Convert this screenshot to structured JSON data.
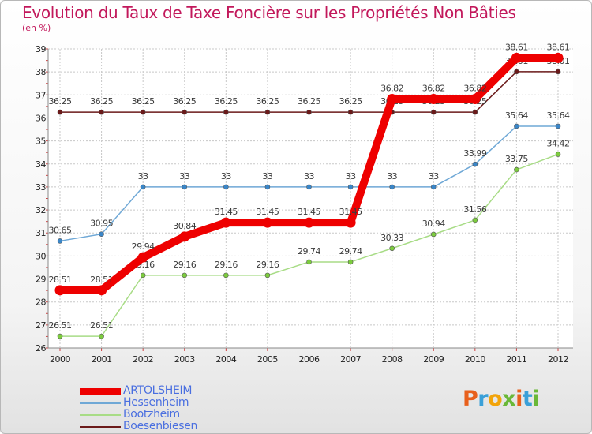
{
  "chart_data": {
    "type": "line",
    "title": "Evolution du Taux de Taxe Foncière sur les Propriétés Non Bâties",
    "ylabel": "(en %)",
    "xlabel": "",
    "categories": [
      "2000",
      "2001",
      "2002",
      "2003",
      "2004",
      "2005",
      "2006",
      "2007",
      "2008",
      "2009",
      "2010",
      "2011",
      "2012"
    ],
    "ylim": [
      26,
      39
    ],
    "yticks": [
      26,
      27,
      28,
      29,
      30,
      31,
      32,
      33,
      34,
      35,
      36,
      37,
      38,
      39
    ],
    "grid": true,
    "legend_position": "bottom-left",
    "series": [
      {
        "name": "Boesenbiesen",
        "color": "#6b1a1a",
        "marker": "#6b1a1a",
        "values": [
          36.25,
          36.25,
          36.25,
          36.25,
          36.25,
          36.25,
          36.25,
          36.25,
          36.25,
          36.25,
          36.25,
          38.01,
          38.01
        ],
        "labels": [
          "36.25",
          "36.25",
          "36.25",
          "36.25",
          "36.25",
          "36.25",
          "36.25",
          "36.25",
          "36.25",
          "36.25",
          "36.25",
          "38.01",
          "38.01"
        ]
      },
      {
        "name": "Hessenheim",
        "color": "#6fa8d6",
        "marker": "#3a86c8",
        "values": [
          30.65,
          30.95,
          33,
          33,
          33,
          33,
          33,
          33,
          33,
          33,
          33.99,
          35.64,
          35.64
        ],
        "labels": [
          "30.65",
          "30.95",
          "33",
          "33",
          "33",
          "33",
          "33",
          "33",
          "33",
          "33",
          "33.99",
          "35.64",
          "35.64"
        ]
      },
      {
        "name": "Bootzheim",
        "color": "#a8dc86",
        "marker": "#7ccc3e",
        "values": [
          26.51,
          26.51,
          29.16,
          29.16,
          29.16,
          29.16,
          29.74,
          29.74,
          30.33,
          30.94,
          31.56,
          33.75,
          34.42
        ],
        "labels": [
          "26.51",
          "26.51",
          "29.16",
          "29.16",
          "29.16",
          "29.16",
          "29.74",
          "29.74",
          "30.33",
          "30.94",
          "31.56",
          "33.75",
          "34.42"
        ]
      },
      {
        "name": "ARTOLSHEIM",
        "color": "#ee0000",
        "marker": "#ee0000",
        "values": [
          28.51,
          28.51,
          29.94,
          30.84,
          31.45,
          31.45,
          31.45,
          31.45,
          36.82,
          36.82,
          36.82,
          38.61,
          38.61
        ],
        "labels": [
          "28.51",
          "28.51",
          "29.94",
          "30.84",
          "31.45",
          "31.45",
          "31.45",
          "31.45",
          "36.82",
          "36.82",
          "36.82",
          "38.61",
          "38.61"
        ]
      }
    ],
    "legend": [
      "ARTOLSHEIM",
      "Hessenheim",
      "Bootzheim",
      "Boesenbiesen"
    ]
  },
  "logo": {
    "text": "Proxiti"
  }
}
